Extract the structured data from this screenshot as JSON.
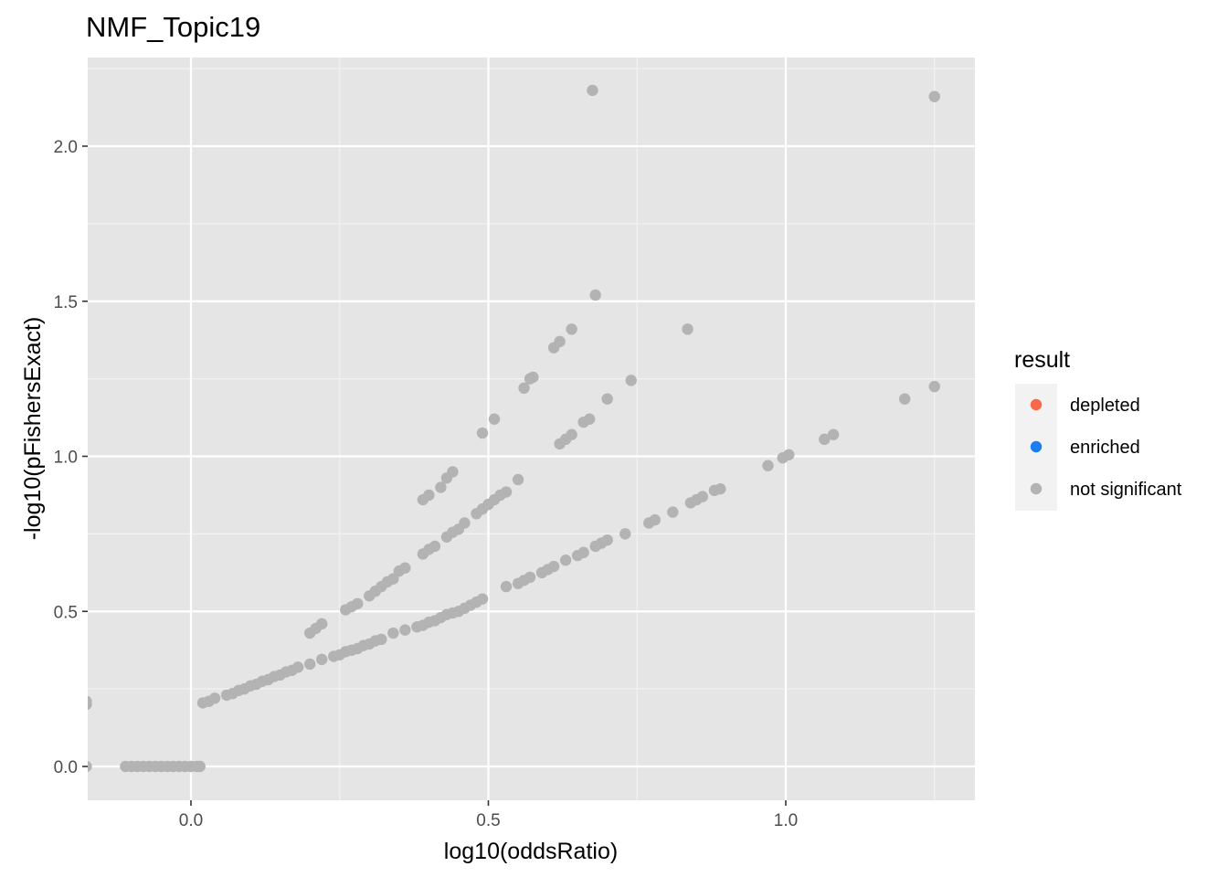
{
  "chart_data": {
    "type": "scatter",
    "title": "NMF_Topic19",
    "xlabel": "log10(oddsRatio)",
    "ylabel": "-log10(pFishersExact)",
    "xlim": [
      -0.176,
      1.32
    ],
    "ylim": [
      -0.1,
      2.26
    ],
    "x_ticks": [
      0.0,
      0.5,
      1.0
    ],
    "x_tick_labels": [
      "0.0",
      "0.5",
      "1.0"
    ],
    "y_ticks": [
      0.0,
      0.5,
      1.0,
      1.5,
      2.0
    ],
    "y_tick_labels": [
      "0.0",
      "0.5",
      "1.0",
      "1.5",
      "2.0"
    ],
    "grid": true,
    "background": "#e5e5e5",
    "legend": {
      "title": "result",
      "position": "right",
      "entries": [
        {
          "label": "depleted",
          "color": "#f8684b"
        },
        {
          "label": "enriched",
          "color": "#1a7ef0"
        },
        {
          "label": "not significant",
          "color": "#b3b3b3"
        }
      ]
    },
    "series": [
      {
        "name": "not significant",
        "color": "#b3b3b3",
        "points": [
          [
            -0.176,
            0.2
          ],
          [
            -0.176,
            0.21
          ],
          [
            -0.176,
            0.0
          ],
          [
            -0.11,
            0.0
          ],
          [
            -0.1,
            0.0
          ],
          [
            -0.09,
            0.0
          ],
          [
            -0.08,
            0.0
          ],
          [
            -0.07,
            0.0
          ],
          [
            -0.06,
            0.0
          ],
          [
            -0.05,
            0.0
          ],
          [
            -0.04,
            0.0
          ],
          [
            -0.03,
            0.0
          ],
          [
            -0.02,
            0.0
          ],
          [
            -0.01,
            0.0
          ],
          [
            0.0,
            0.0
          ],
          [
            0.01,
            0.0
          ],
          [
            0.015,
            0.0
          ],
          [
            0.02,
            0.205
          ],
          [
            0.03,
            0.21
          ],
          [
            0.04,
            0.22
          ],
          [
            0.06,
            0.23
          ],
          [
            0.07,
            0.235
          ],
          [
            0.08,
            0.245
          ],
          [
            0.09,
            0.25
          ],
          [
            0.1,
            0.26
          ],
          [
            0.11,
            0.265
          ],
          [
            0.12,
            0.275
          ],
          [
            0.13,
            0.28
          ],
          [
            0.14,
            0.29
          ],
          [
            0.15,
            0.295
          ],
          [
            0.16,
            0.305
          ],
          [
            0.17,
            0.31
          ],
          [
            0.18,
            0.32
          ],
          [
            0.2,
            0.33
          ],
          [
            0.22,
            0.345
          ],
          [
            0.24,
            0.355
          ],
          [
            0.25,
            0.36
          ],
          [
            0.26,
            0.37
          ],
          [
            0.27,
            0.375
          ],
          [
            0.28,
            0.38
          ],
          [
            0.29,
            0.39
          ],
          [
            0.3,
            0.395
          ],
          [
            0.31,
            0.405
          ],
          [
            0.32,
            0.41
          ],
          [
            0.34,
            0.43
          ],
          [
            0.36,
            0.44
          ],
          [
            0.38,
            0.45
          ],
          [
            0.39,
            0.455
          ],
          [
            0.4,
            0.465
          ],
          [
            0.41,
            0.47
          ],
          [
            0.42,
            0.48
          ],
          [
            0.43,
            0.49
          ],
          [
            0.44,
            0.495
          ],
          [
            0.45,
            0.5
          ],
          [
            0.46,
            0.51
          ],
          [
            0.47,
            0.52
          ],
          [
            0.48,
            0.53
          ],
          [
            0.49,
            0.54
          ],
          [
            0.53,
            0.58
          ],
          [
            0.55,
            0.59
          ],
          [
            0.56,
            0.6
          ],
          [
            0.57,
            0.61
          ],
          [
            0.59,
            0.625
          ],
          [
            0.6,
            0.635
          ],
          [
            0.61,
            0.645
          ],
          [
            0.63,
            0.665
          ],
          [
            0.65,
            0.68
          ],
          [
            0.66,
            0.69
          ],
          [
            0.68,
            0.71
          ],
          [
            0.69,
            0.72
          ],
          [
            0.7,
            0.73
          ],
          [
            0.73,
            0.75
          ],
          [
            0.77,
            0.785
          ],
          [
            0.78,
            0.795
          ],
          [
            0.81,
            0.82
          ],
          [
            0.84,
            0.85
          ],
          [
            0.85,
            0.86
          ],
          [
            0.86,
            0.87
          ],
          [
            0.88,
            0.89
          ],
          [
            0.89,
            0.895
          ],
          [
            0.97,
            0.97
          ],
          [
            0.995,
            0.995
          ],
          [
            1.005,
            1.005
          ],
          [
            1.065,
            1.055
          ],
          [
            1.08,
            1.07
          ],
          [
            1.2,
            1.185
          ],
          [
            1.25,
            1.225
          ],
          [
            0.2,
            0.43
          ],
          [
            0.21,
            0.445
          ],
          [
            0.22,
            0.46
          ],
          [
            0.26,
            0.505
          ],
          [
            0.27,
            0.515
          ],
          [
            0.28,
            0.525
          ],
          [
            0.3,
            0.55
          ],
          [
            0.31,
            0.565
          ],
          [
            0.32,
            0.58
          ],
          [
            0.33,
            0.595
          ],
          [
            0.34,
            0.605
          ],
          [
            0.35,
            0.63
          ],
          [
            0.36,
            0.64
          ],
          [
            0.39,
            0.685
          ],
          [
            0.4,
            0.7
          ],
          [
            0.41,
            0.71
          ],
          [
            0.43,
            0.74
          ],
          [
            0.44,
            0.755
          ],
          [
            0.45,
            0.765
          ],
          [
            0.46,
            0.785
          ],
          [
            0.48,
            0.815
          ],
          [
            0.49,
            0.83
          ],
          [
            0.5,
            0.845
          ],
          [
            0.51,
            0.86
          ],
          [
            0.52,
            0.875
          ],
          [
            0.53,
            0.885
          ],
          [
            0.55,
            0.925
          ],
          [
            0.62,
            1.04
          ],
          [
            0.63,
            1.055
          ],
          [
            0.64,
            1.07
          ],
          [
            0.66,
            1.11
          ],
          [
            0.67,
            1.12
          ],
          [
            0.7,
            1.185
          ],
          [
            0.74,
            1.245
          ],
          [
            0.39,
            0.86
          ],
          [
            0.4,
            0.875
          ],
          [
            0.42,
            0.9
          ],
          [
            0.43,
            0.93
          ],
          [
            0.44,
            0.95
          ],
          [
            0.49,
            1.075
          ],
          [
            0.51,
            1.12
          ],
          [
            0.56,
            1.22
          ],
          [
            0.57,
            1.25
          ],
          [
            0.575,
            1.255
          ],
          [
            0.61,
            1.35
          ],
          [
            0.62,
            1.37
          ],
          [
            0.64,
            1.41
          ],
          [
            0.68,
            1.52
          ],
          [
            0.835,
            1.41
          ],
          [
            0.675,
            2.18
          ],
          [
            1.25,
            2.16
          ]
        ]
      }
    ]
  }
}
